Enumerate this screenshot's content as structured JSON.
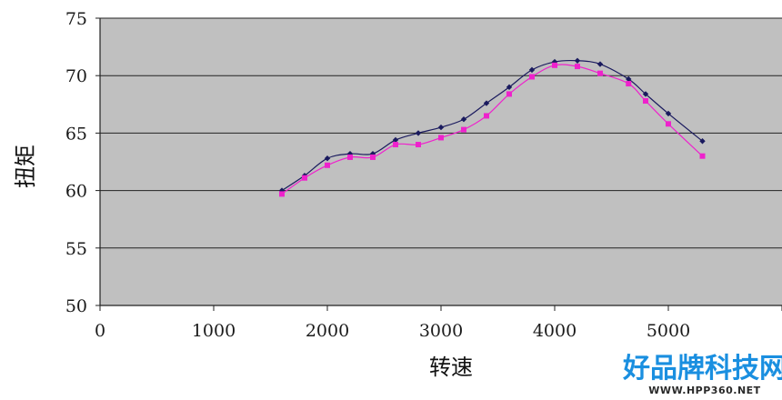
{
  "chart_data": {
    "type": "line",
    "title": "",
    "xlabel": "转速",
    "ylabel": "扭矩",
    "xlim": [
      0,
      6000
    ],
    "ylim": [
      50,
      75
    ],
    "x_ticks": [
      "0",
      "1000",
      "2000",
      "3000",
      "4000",
      "5000"
    ],
    "y_ticks": [
      "50",
      "55",
      "60",
      "65",
      "70",
      "75"
    ],
    "grid": "horizontal",
    "legend": "none",
    "plot_background": "#c0c0c0",
    "series": [
      {
        "color": "#1a1a5e",
        "marker": "diamond",
        "x": [
          1600,
          1800,
          2000,
          2200,
          2400,
          2600,
          2800,
          3000,
          3200,
          3400,
          3600,
          3800,
          4000,
          4200,
          4400,
          4650,
          4800,
          5000,
          5300
        ],
        "y": [
          60.0,
          61.3,
          62.8,
          63.2,
          63.2,
          64.4,
          65.0,
          65.5,
          66.2,
          67.6,
          69.0,
          70.5,
          71.2,
          71.3,
          71.0,
          69.7,
          68.4,
          66.7,
          64.3
        ]
      },
      {
        "color": "#ee22cc",
        "marker": "square",
        "x": [
          1600,
          1800,
          2000,
          2200,
          2400,
          2600,
          2800,
          3000,
          3200,
          3400,
          3600,
          3800,
          4000,
          4200,
          4400,
          4650,
          4800,
          5000,
          5300
        ],
        "y": [
          59.7,
          61.1,
          62.2,
          62.9,
          62.9,
          64.0,
          64.0,
          64.6,
          65.3,
          66.5,
          68.4,
          69.9,
          70.9,
          70.8,
          70.2,
          69.3,
          67.8,
          65.8,
          63.0
        ]
      }
    ]
  },
  "watermark": {
    "main": "好品牌科技网",
    "sub": "WWW.HPP360.NET"
  }
}
